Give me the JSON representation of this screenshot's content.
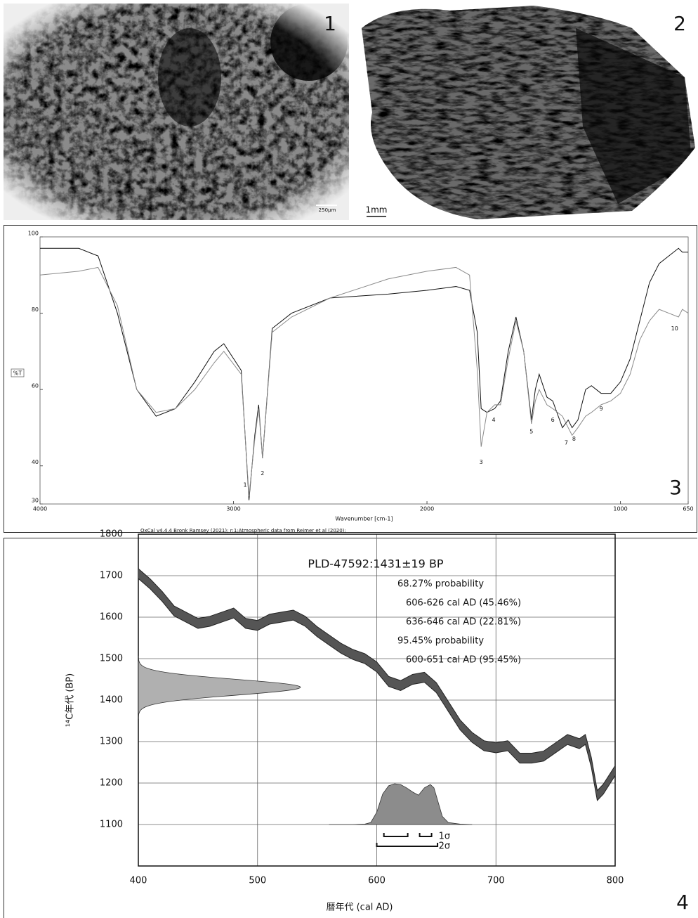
{
  "photos": [
    {
      "label": "1",
      "scale": "250μm"
    },
    {
      "label": "2",
      "scale": "1mm"
    }
  ],
  "chart_data": [
    {
      "type": "line",
      "panel": "3",
      "ylabel": "%T",
      "xlabel": "Wavenumber [cm-1]",
      "xlim": [
        4000,
        650
      ],
      "ylim": [
        30,
        100
      ],
      "xticks": [
        4000,
        3000,
        2000,
        1000,
        650
      ],
      "yticks": [
        30,
        40,
        60,
        80,
        100
      ],
      "x": [
        4000,
        3800,
        3700,
        3600,
        3500,
        3400,
        3300,
        3200,
        3100,
        3050,
        2960,
        2920,
        2890,
        2870,
        2850,
        2800,
        2700,
        2500,
        2200,
        2000,
        1850,
        1780,
        1740,
        1720,
        1690,
        1650,
        1620,
        1580,
        1540,
        1500,
        1460,
        1440,
        1420,
        1380,
        1350,
        1300,
        1270,
        1250,
        1220,
        1180,
        1150,
        1100,
        1050,
        1000,
        950,
        900,
        850,
        800,
        750,
        700,
        680,
        650
      ],
      "series": [
        {
          "color": "#111111",
          "values": [
            97,
            97,
            95,
            80,
            60,
            53,
            55,
            62,
            70,
            72,
            65,
            31,
            48,
            56,
            42,
            76,
            80,
            84,
            85,
            86,
            87,
            86,
            75,
            55,
            54,
            55,
            57,
            70,
            79,
            70,
            52,
            60,
            64,
            58,
            57,
            50,
            52,
            50,
            52,
            60,
            61,
            59,
            59,
            62,
            68,
            78,
            88,
            93,
            95,
            97,
            96,
            96
          ]
        },
        {
          "color": "#8a8a8a",
          "values": [
            90,
            91,
            92,
            82,
            60,
            54,
            55,
            60,
            67,
            70,
            64,
            32,
            47,
            55,
            42,
            75,
            79,
            84,
            89,
            91,
            92,
            90,
            65,
            45,
            54,
            56,
            56,
            68,
            78,
            70,
            51,
            57,
            60,
            56,
            55,
            53,
            50,
            48,
            50,
            53,
            54,
            56,
            57,
            59,
            64,
            73,
            78,
            81,
            80,
            79,
            81,
            80
          ]
        }
      ],
      "annotations": [
        {
          "label": "1",
          "x": 2940,
          "y": 35
        },
        {
          "label": "2",
          "x": 2850,
          "y": 38
        },
        {
          "label": "3",
          "x": 1720,
          "y": 41
        },
        {
          "label": "4",
          "x": 1655,
          "y": 52
        },
        {
          "label": "5",
          "x": 1460,
          "y": 49
        },
        {
          "label": "6",
          "x": 1350,
          "y": 52
        },
        {
          "label": "7",
          "x": 1280,
          "y": 46
        },
        {
          "label": "8",
          "x": 1240,
          "y": 47
        },
        {
          "label": "9",
          "x": 1100,
          "y": 55
        },
        {
          "label": "10",
          "x": 720,
          "y": 76
        }
      ]
    },
    {
      "type": "calibration",
      "panel": "4",
      "header": "OxCal v4.4.4 Bronk Ramsey (2021); r:1;Atmospheric data from Reimer et al (2020);",
      "title": "PLD-47592:1431±19 BP",
      "notes": [
        "68.27% probability",
        "606-626 cal AD (45.46%)",
        "636-646 cal AD (22.81%)",
        "95.45% probability",
        "600-651 cal AD (95.45%)"
      ],
      "xlabel": "暦年代 (cal AD)",
      "ylabel": "¹⁴C年代 (BP)",
      "xlim": [
        400,
        800
      ],
      "ylim": [
        1000,
        1800
      ],
      "xticks": [
        400,
        500,
        600,
        700,
        800
      ],
      "yticks": [
        1100,
        1200,
        1300,
        1400,
        1500,
        1600,
        1700,
        1800
      ],
      "grid": true,
      "curve": {
        "color": "#555555",
        "x": [
          400,
          410,
          420,
          430,
          440,
          450,
          460,
          470,
          480,
          490,
          500,
          510,
          520,
          530,
          540,
          550,
          560,
          570,
          580,
          590,
          600,
          610,
          620,
          630,
          640,
          650,
          660,
          670,
          680,
          690,
          700,
          710,
          720,
          730,
          740,
          750,
          760,
          770,
          775,
          780,
          785,
          790,
          800
        ],
        "upper": [
          1717,
          1692,
          1662,
          1627,
          1612,
          1597,
          1602,
          1612,
          1622,
          1597,
          1592,
          1607,
          1612,
          1617,
          1602,
          1577,
          1557,
          1537,
          1522,
          1512,
          1492,
          1457,
          1447,
          1462,
          1467,
          1442,
          1397,
          1352,
          1322,
          1302,
          1297,
          1302,
          1272,
          1272,
          1277,
          1297,
          1317,
          1307,
          1317,
          1262,
          1182,
          1197,
          1242
        ],
        "lower": [
          1693,
          1668,
          1638,
          1603,
          1588,
          1573,
          1578,
          1588,
          1598,
          1573,
          1568,
          1583,
          1588,
          1593,
          1578,
          1553,
          1533,
          1513,
          1498,
          1488,
          1468,
          1433,
          1423,
          1438,
          1443,
          1418,
          1373,
          1328,
          1298,
          1278,
          1273,
          1278,
          1248,
          1248,
          1253,
          1273,
          1293,
          1283,
          1293,
          1238,
          1158,
          1173,
          1218
        ]
      },
      "measured": {
        "color": "#b0b0b0",
        "center": 1431,
        "error": 19
      },
      "calendar": {
        "color": "#8c8c8c",
        "x": [
          560,
          580,
          590,
          595,
          600,
          605,
          610,
          615,
          620,
          625,
          630,
          635,
          640,
          645,
          648,
          652,
          655,
          660,
          670,
          680
        ],
        "values": [
          0,
          0,
          0.01,
          0.05,
          0.3,
          0.75,
          0.95,
          1,
          0.98,
          0.9,
          0.8,
          0.72,
          0.9,
          0.98,
          0.9,
          0.5,
          0.2,
          0.05,
          0.01,
          0
        ]
      },
      "ranges": [
        {
          "label": "1σ",
          "spans": [
            [
              606,
              626
            ],
            [
              636,
              646
            ]
          ]
        },
        {
          "label": "2σ",
          "spans": [
            [
              600,
              651
            ]
          ]
        }
      ]
    }
  ]
}
